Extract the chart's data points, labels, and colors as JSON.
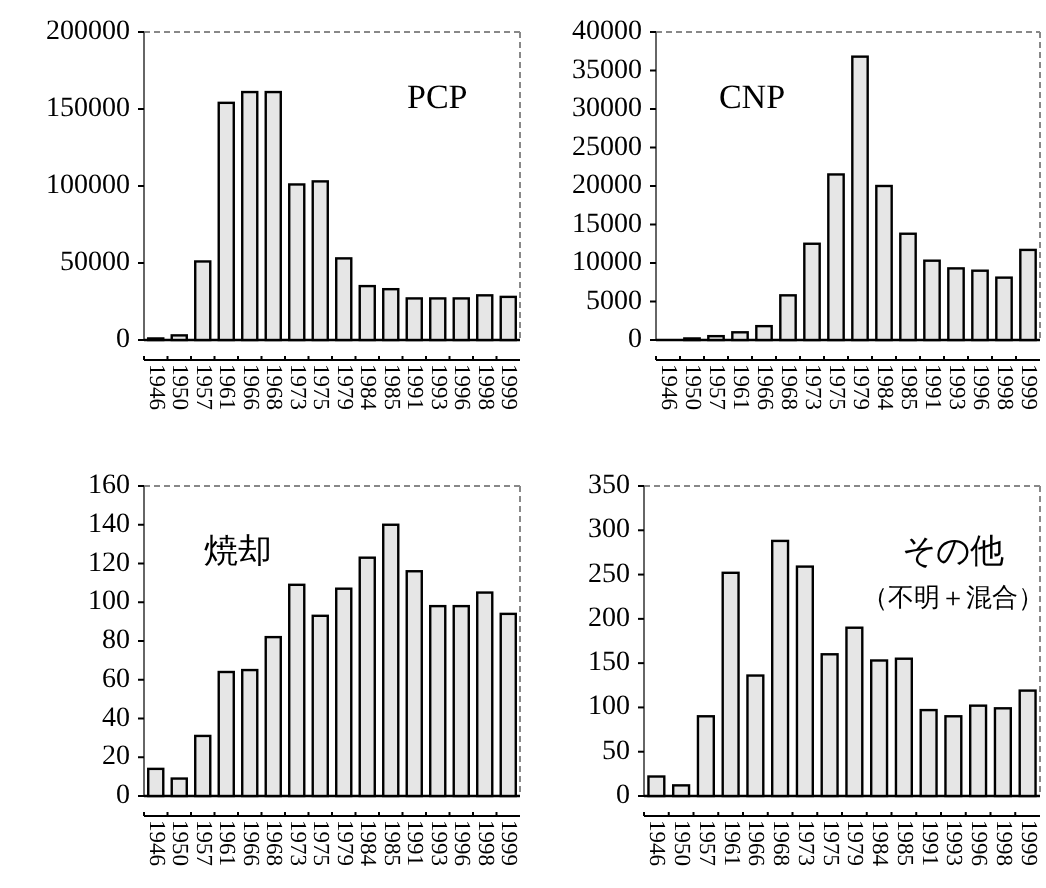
{
  "chart_data": [
    {
      "type": "bar",
      "annotations": [
        "PCP"
      ],
      "categories": [
        "1946",
        "1950",
        "1957",
        "1961",
        "1966",
        "1968",
        "1973",
        "1975",
        "1979",
        "1984",
        "1985",
        "1991",
        "1993",
        "1996",
        "1998",
        "1999"
      ],
      "values": [
        1000,
        3000,
        51000,
        154000,
        161000,
        161000,
        101000,
        103000,
        53000,
        35000,
        33000,
        27000,
        27000,
        27000,
        29000,
        28000
      ],
      "color": "#e6e6e6",
      "ylim": [
        0,
        200000
      ],
      "yticks": [
        0,
        50000,
        100000,
        150000,
        200000
      ]
    },
    {
      "type": "bar",
      "annotations": [
        "CNP"
      ],
      "categories": [
        "1946",
        "1950",
        "1957",
        "1961",
        "1966",
        "1968",
        "1973",
        "1975",
        "1979",
        "1984",
        "1985",
        "1991",
        "1993",
        "1996",
        "1998",
        "1999"
      ],
      "values": [
        null,
        200,
        500,
        1000,
        1800,
        5800,
        12500,
        21500,
        36800,
        20000,
        13800,
        10300,
        9300,
        9000,
        8100,
        11700
      ],
      "color": "#e6e6e6",
      "ylim": [
        0,
        40000
      ],
      "yticks": [
        0,
        5000,
        10000,
        15000,
        20000,
        25000,
        30000,
        35000,
        40000
      ]
    },
    {
      "type": "bar",
      "annotations": [
        "焼却"
      ],
      "categories": [
        "1946",
        "1950",
        "1957",
        "1961",
        "1966",
        "1968",
        "1973",
        "1975",
        "1979",
        "1984",
        "1985",
        "1991",
        "1993",
        "1996",
        "1998",
        "1999"
      ],
      "values": [
        14,
        9,
        31,
        64,
        65,
        82,
        109,
        93,
        107,
        123,
        140,
        116,
        98,
        98,
        105,
        94
      ],
      "color": "#e6e6e6",
      "ylim": [
        0,
        160
      ],
      "yticks": [
        0,
        20,
        40,
        60,
        80,
        100,
        120,
        140,
        160
      ]
    },
    {
      "type": "bar",
      "annotations": [
        "その他",
        "（不明＋混合）"
      ],
      "categories": [
        "1946",
        "1950",
        "1957",
        "1961",
        "1966",
        "1968",
        "1973",
        "1975",
        "1979",
        "1984",
        "1985",
        "1991",
        "1993",
        "1996",
        "1998",
        "1999"
      ],
      "values": [
        22,
        12,
        90,
        252,
        136,
        288,
        259,
        160,
        190,
        153,
        155,
        97,
        90,
        102,
        99,
        119
      ],
      "color": "#e6e6e6",
      "ylim": [
        0,
        350
      ],
      "yticks": [
        0,
        50,
        100,
        150,
        200,
        250,
        300,
        350
      ]
    }
  ]
}
